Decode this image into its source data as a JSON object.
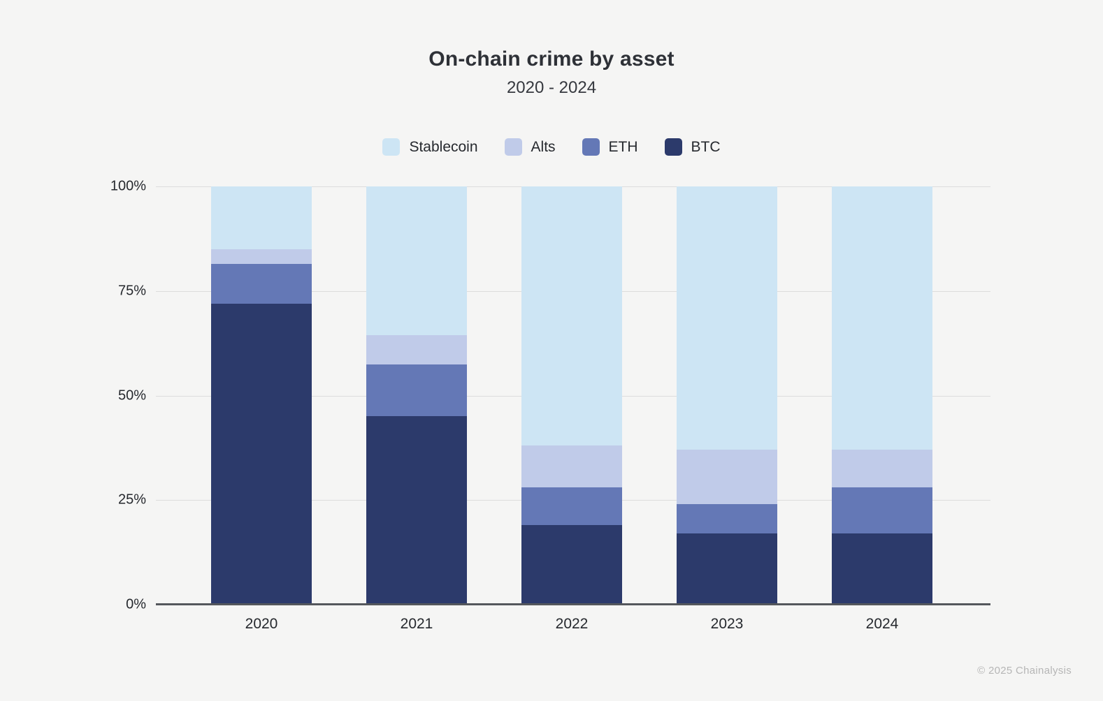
{
  "page": {
    "title": "On-chain crime by asset",
    "subtitle": "2020 - 2024",
    "footer": "© 2025 Chainalysis",
    "background_color": "#f5f5f4"
  },
  "chart_data": {
    "type": "bar",
    "stacked": true,
    "units": "percent",
    "title": "On-chain crime by asset",
    "subtitle": "2020 - 2024",
    "xlabel": "",
    "ylabel": "",
    "ylim": [
      0,
      100
    ],
    "grid": true,
    "legend_position": "top",
    "categories": [
      "2020",
      "2021",
      "2022",
      "2023",
      "2024"
    ],
    "series": [
      {
        "name": "Stablecoin",
        "color": "#cde5f4",
        "values": [
          15,
          35.5,
          62,
          63,
          63
        ]
      },
      {
        "name": "Alts",
        "color": "#c0cbe9",
        "values": [
          3.5,
          7,
          10,
          13,
          9
        ]
      },
      {
        "name": "ETH",
        "color": "#6478b6",
        "values": [
          9.5,
          12.5,
          9,
          7,
          11
        ]
      },
      {
        "name": "BTC",
        "color": "#2c3a6b",
        "values": [
          72,
          45,
          19,
          17,
          17
        ]
      }
    ],
    "yticks": [
      "100%",
      "75%",
      "50%",
      "25%",
      "0%"
    ],
    "ytick_values": [
      100,
      75,
      50,
      25,
      0
    ],
    "gridline_color": "#dcdcdc",
    "axis_color": "#54575c"
  }
}
